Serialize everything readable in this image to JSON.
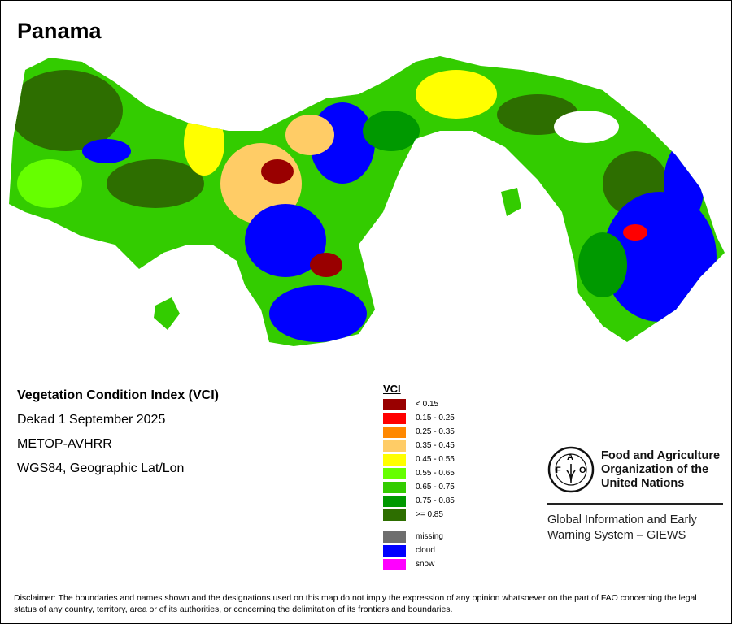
{
  "title": "Panama",
  "info": {
    "index_name": "Vegetation Condition Index (VCI)",
    "period": "Dekad 1 September 2025",
    "sensor": "METOP-AVHRR",
    "projection": "WGS84, Geographic Lat/Lon"
  },
  "legend": {
    "title": "VCI",
    "classes": [
      {
        "label": "< 0.15",
        "color": "#990000"
      },
      {
        "label": "0.15 - 0.25",
        "color": "#ff0000"
      },
      {
        "label": "0.25 - 0.35",
        "color": "#ff8800"
      },
      {
        "label": "0.35 - 0.45",
        "color": "#ffcc66"
      },
      {
        "label": "0.45 - 0.55",
        "color": "#ffff00"
      },
      {
        "label": "0.55 - 0.65",
        "color": "#66ff00"
      },
      {
        "label": "0.65 - 0.75",
        "color": "#33cc00"
      },
      {
        "label": "0.75 - 0.85",
        "color": "#009900"
      },
      {
        "label": ">= 0.85",
        "color": "#2d6e00"
      }
    ],
    "other": [
      {
        "label": "missing",
        "color": "#6e6e6e"
      },
      {
        "label": "cloud",
        "color": "#0000ff"
      },
      {
        "label": "snow",
        "color": "#ff00ff"
      }
    ]
  },
  "fao": {
    "logo_text": "FAO FIAT PANIS",
    "name_line1": "Food and Agriculture",
    "name_line2": "Organization of the",
    "name_line3": "United Nations",
    "giews_line1": "Global Information and Early",
    "giews_line2": "Warning System – GIEWS"
  },
  "disclaimer": "Disclaimer: The boundaries and names shown and the designations used on this map do not imply the expression of any opinion whatsoever on the part of FAO concerning the legal status of any country, territory, area or of its authorities, or concerning the delimitation of its frontiers and boundaries."
}
